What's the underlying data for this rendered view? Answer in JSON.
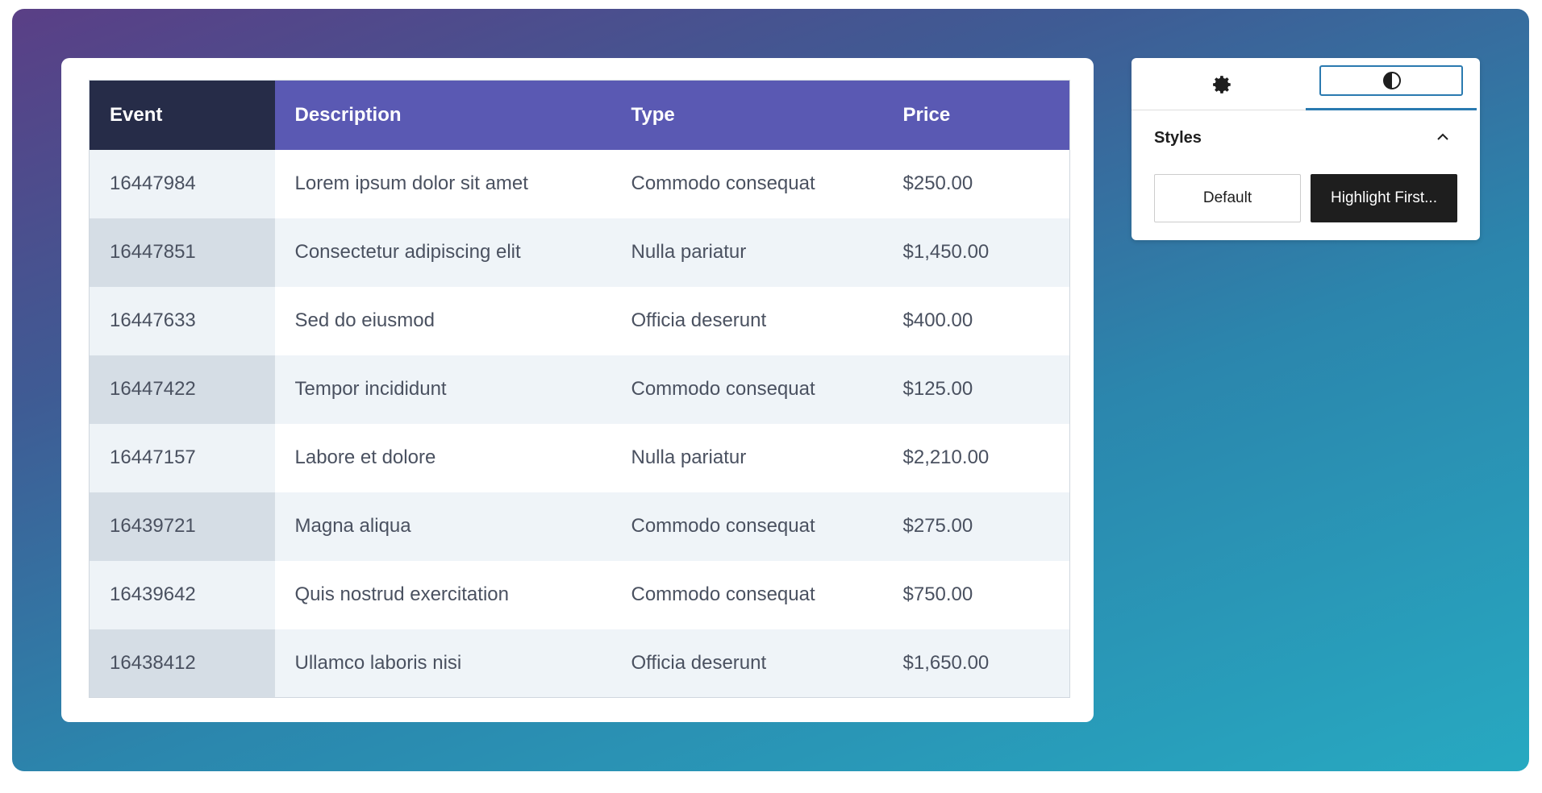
{
  "table": {
    "header": [
      "Event",
      "Description",
      "Type",
      "Price"
    ],
    "rows": [
      [
        "16447984",
        "Lorem ipsum dolor sit amet",
        "Commodo consequat",
        "$250.00"
      ],
      [
        "16447851",
        "Consectetur adipiscing elit",
        "Nulla pariatur",
        "$1,450.00"
      ],
      [
        "16447633",
        "Sed do eiusmod",
        "Officia deserunt",
        "$400.00"
      ],
      [
        "16447422",
        "Tempor incididunt",
        "Commodo consequat",
        "$125.00"
      ],
      [
        "16447157",
        "Labore et dolore",
        "Nulla pariatur",
        "$2,210.00"
      ],
      [
        "16439721",
        "Magna aliqua",
        "Commodo consequat",
        "$275.00"
      ],
      [
        "16439642",
        "Quis nostrud exercitation",
        "Commodo consequat",
        "$750.00"
      ],
      [
        "16438412",
        "Ullamco laboris nisi",
        "Officia deserunt",
        "$1,650.00"
      ]
    ]
  },
  "panel": {
    "section_title": "Styles",
    "buttons": [
      "Default",
      "Highlight First..."
    ]
  }
}
